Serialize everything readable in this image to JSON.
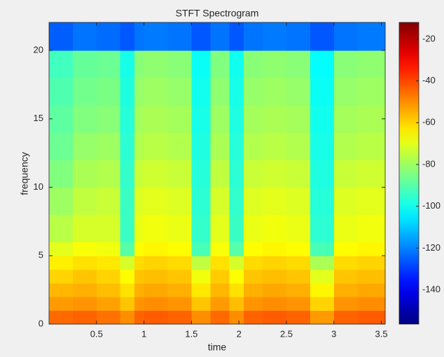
{
  "chart_data": {
    "type": "heatmap",
    "title": "STFT Spectrogram",
    "x_label": "time",
    "y_label": "frequency",
    "colormap": "jet",
    "x": [
      0,
      0.25,
      0.5,
      0.75,
      0.9,
      1.0,
      1.25,
      1.5,
      1.7,
      1.9,
      2.05,
      2.25,
      2.5,
      2.75,
      3.0,
      3.25,
      3.54
    ],
    "y": [
      0,
      1,
      2,
      3,
      4,
      5,
      6,
      8,
      10,
      12,
      14,
      16,
      18,
      20,
      22.05
    ],
    "z": [
      [
        -45,
        -44,
        -46,
        -50,
        -44,
        -43,
        -44,
        -50,
        -45,
        -50,
        -44,
        -43,
        -44,
        -52,
        -44,
        -43
      ],
      [
        -52,
        -51,
        -53,
        -58,
        -51,
        -50,
        -51,
        -58,
        -52,
        -57,
        -51,
        -50,
        -51,
        -60,
        -51,
        -50
      ],
      [
        -56,
        -55,
        -57,
        -62,
        -55,
        -54,
        -55,
        -63,
        -56,
        -62,
        -55,
        -54,
        -55,
        -65,
        -55,
        -54
      ],
      [
        -60,
        -58,
        -60,
        -66,
        -58,
        -57,
        -58,
        -68,
        -59,
        -66,
        -58,
        -57,
        -58,
        -70,
        -58,
        -57
      ],
      [
        -64,
        -62,
        -63,
        -72,
        -61,
        -60,
        -61,
        -75,
        -62,
        -72,
        -61,
        -60,
        -61,
        -78,
        -61,
        -60
      ],
      [
        -70,
        -67,
        -68,
        -90,
        -66,
        -65,
        -66,
        -92,
        -67,
        -90,
        -66,
        -65,
        -66,
        -92,
        -66,
        -65
      ],
      [
        -76,
        -72,
        -72,
        -94,
        -69,
        -68,
        -69,
        -95,
        -70,
        -94,
        -69,
        -68,
        -69,
        -96,
        -69,
        -68
      ],
      [
        -80,
        -75,
        -74,
        -94,
        -71,
        -70,
        -71,
        -96,
        -72,
        -95,
        -71,
        -70,
        -71,
        -97,
        -71,
        -70
      ],
      [
        -84,
        -78,
        -77,
        -95,
        -74,
        -73,
        -74,
        -97,
        -75,
        -96,
        -74,
        -73,
        -74,
        -98,
        -74,
        -73
      ],
      [
        -87,
        -81,
        -80,
        -96,
        -77,
        -76,
        -77,
        -98,
        -78,
        -97,
        -77,
        -76,
        -77,
        -99,
        -77,
        -76
      ],
      [
        -89,
        -84,
        -83,
        -97,
        -79,
        -78,
        -79,
        -99,
        -80,
        -98,
        -79,
        -78,
        -79,
        -100,
        -79,
        -78
      ],
      [
        -91,
        -86,
        -85,
        -98,
        -81,
        -80,
        -81,
        -100,
        -82,
        -99,
        -81,
        -80,
        -81,
        -101,
        -81,
        -80
      ],
      [
        -93,
        -88,
        -87,
        -99,
        -83,
        -82,
        -83,
        -101,
        -84,
        -100,
        -83,
        -82,
        -83,
        -102,
        -83,
        -82
      ],
      [
        -125,
        -122,
        -123,
        -126,
        -122,
        -121,
        -122,
        -126,
        -122,
        -126,
        -122,
        -121,
        -122,
        -126,
        -122,
        -121
      ]
    ],
    "xlim": [
      0,
      3.54
    ],
    "xticks": [
      0.5,
      1,
      1.5,
      2,
      2.5,
      3,
      3.5
    ],
    "ylim": [
      0,
      22.05
    ],
    "yticks": [
      0,
      5,
      10,
      15,
      20
    ],
    "clim": [
      -156.4,
      -12
    ],
    "cticks": [
      -140,
      -120,
      -100,
      -80,
      -60,
      -40,
      -20
    ]
  }
}
